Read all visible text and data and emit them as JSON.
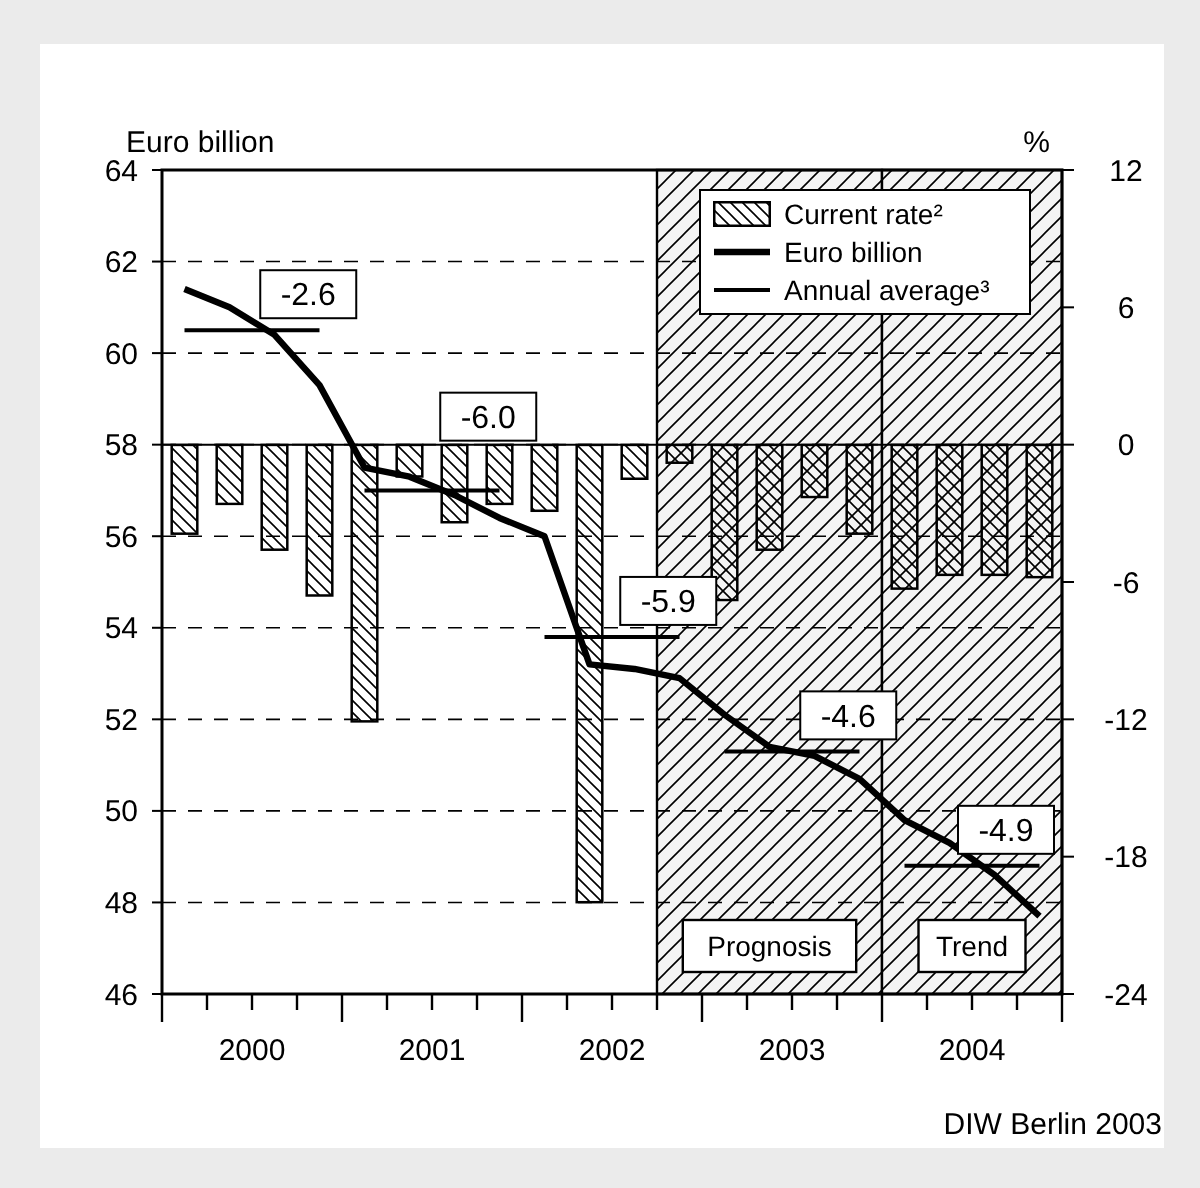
{
  "chart_data": {
    "type": "line",
    "ylabel": "Euro billion",
    "y2label": "%",
    "x": [
      2000.125,
      2000.375,
      2000.625,
      2000.875,
      2001.125,
      2001.375,
      2001.625,
      2001.875,
      2002.125,
      2002.375,
      2002.625,
      2002.875,
      2003.125,
      2003.375,
      2003.625,
      2003.875,
      2004.125,
      2004.375,
      2004.625,
      2004.875
    ],
    "series": [
      {
        "name": "Current rate²",
        "type": "bar",
        "axis": "y2",
        "color": "#000000",
        "values": [
          -3.9,
          -2.6,
          -4.6,
          -6.6,
          -12.1,
          -1.4,
          -3.4,
          -2.6,
          -2.9,
          -20.0,
          -1.5,
          -0.8,
          -6.8,
          -4.6,
          -2.3,
          -3.9,
          -6.3,
          -5.7,
          -5.7,
          -5.8
        ]
      },
      {
        "name": "Euro billion",
        "color": "#000000",
        "values": [
          61.4,
          61.0,
          60.4,
          59.3,
          57.5,
          57.3,
          56.9,
          56.4,
          56.0,
          53.2,
          53.1,
          52.9,
          52.1,
          51.4,
          51.2,
          50.7,
          49.8,
          49.3,
          48.6,
          47.7
        ]
      },
      {
        "name": "Annual average³",
        "color": "#000000",
        "x": [
          2000.125,
          2000.875,
          2001.0,
          2001.125,
          2001.875,
          2002.0,
          2002.125,
          2002.875,
          2003.0,
          2003.125,
          2003.875,
          2004.0,
          2004.125,
          2004.875
        ],
        "values": [
          60.5,
          60.5,
          null,
          57.0,
          57.0,
          null,
          53.8,
          53.8,
          null,
          51.3,
          51.3,
          null,
          48.8,
          48.8
        ]
      }
    ],
    "xlim": [
      2000,
      2005
    ],
    "xticks": [
      {
        "value": 2000,
        "label": null
      },
      {
        "value": 2000.25,
        "label": null
      },
      {
        "value": 2000.5,
        "label": "2000"
      },
      {
        "value": 2000.75,
        "label": null
      },
      {
        "value": 2001,
        "label": null
      },
      {
        "value": 2001.25,
        "label": null
      },
      {
        "value": 2001.5,
        "label": "2001"
      },
      {
        "value": 2001.75,
        "label": null
      },
      {
        "value": 2002,
        "label": null
      },
      {
        "value": 2002.25,
        "label": null
      },
      {
        "value": 2002.5,
        "label": "2002"
      },
      {
        "value": 2002.75,
        "label": null
      },
      {
        "value": 2003,
        "label": null
      },
      {
        "value": 2003.25,
        "label": null
      },
      {
        "value": 2003.5,
        "label": "2003"
      },
      {
        "value": 2003.75,
        "label": null
      },
      {
        "value": 2004,
        "label": null
      },
      {
        "value": 2004.25,
        "label": null
      },
      {
        "value": 2004.5,
        "label": "2004"
      },
      {
        "value": 2004.75,
        "label": null
      },
      {
        "value": 2005,
        "label": null
      }
    ],
    "ylim": [
      46,
      64
    ],
    "yticks": [
      46,
      48,
      50,
      52,
      54,
      56,
      58,
      60,
      62,
      64
    ],
    "y2lim": [
      -24,
      12
    ],
    "y2ticks": [
      -24,
      -18,
      -12,
      -6,
      0,
      6,
      12
    ],
    "bands": [
      {
        "axis": "x",
        "from": 2002.75,
        "to": 2004,
        "label": "Prognosis",
        "color": "#f4f4f4"
      },
      {
        "axis": "x",
        "from": 2004,
        "to": 2005,
        "label": "Trend",
        "color": "#f4f4f4"
      }
    ],
    "annotations": [
      {
        "text": "-2.6",
        "x": 2000.5,
        "y": 60.5
      },
      {
        "text": "-6.0",
        "x": 2001.5,
        "y": 57.0
      },
      {
        "text": "-5.9",
        "x": 2002.5,
        "y": 53.8
      },
      {
        "text": "-4.6",
        "x": 2003.5,
        "y": 51.3
      },
      {
        "text": "-4.9",
        "x": 2004.5,
        "y": 48.8
      },
      "DIW Berlin 2003"
    ],
    "grid": "y",
    "legend": "top right"
  }
}
